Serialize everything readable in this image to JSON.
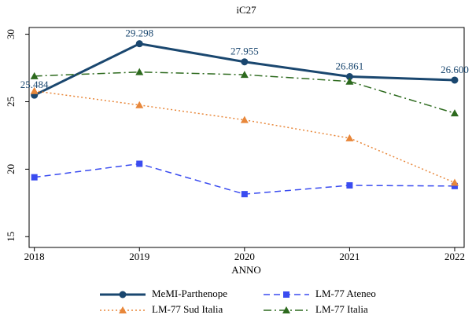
{
  "chart_data": {
    "type": "line",
    "title": "iC27",
    "x_label": "ANNO",
    "x": [
      2018,
      2019,
      2020,
      2021,
      2022
    ],
    "xlim": [
      2017.95,
      2022.09
    ],
    "xticks": [
      2018,
      2019,
      2020,
      2021,
      2022
    ],
    "ylim": [
      14.2,
      30.5
    ],
    "yticks": [
      15,
      20,
      25,
      30
    ],
    "legend": "bottom",
    "series": [
      {
        "name": "MeMI-Parthenope",
        "color": "#1a476f",
        "line_style": "solid",
        "marker": "circle",
        "width": 3,
        "values": [
          25.484,
          29.298,
          27.955,
          26.861,
          26.6
        ],
        "value_labels": [
          "25.484",
          "29.298",
          "27.955",
          "26.861",
          "26.600"
        ]
      },
      {
        "name": "LM-77 Ateneo",
        "color": "#3a4cf0",
        "line_style": "dash",
        "marker": "square",
        "width": 1.5,
        "values": [
          19.4,
          20.4,
          18.15,
          18.8,
          18.75
        ]
      },
      {
        "name": "LM-77 Sud Italia",
        "color": "#e8873a",
        "line_style": "dot",
        "marker": "triangle",
        "width": 1.5,
        "values": [
          25.8,
          24.75,
          23.65,
          22.3,
          19.0
        ]
      },
      {
        "name": "LM-77 Italia",
        "color": "#2d6a1e",
        "line_style": "dashdot",
        "marker": "triangle",
        "width": 1.5,
        "values": [
          26.9,
          27.2,
          27.0,
          26.5,
          24.15
        ]
      }
    ]
  }
}
